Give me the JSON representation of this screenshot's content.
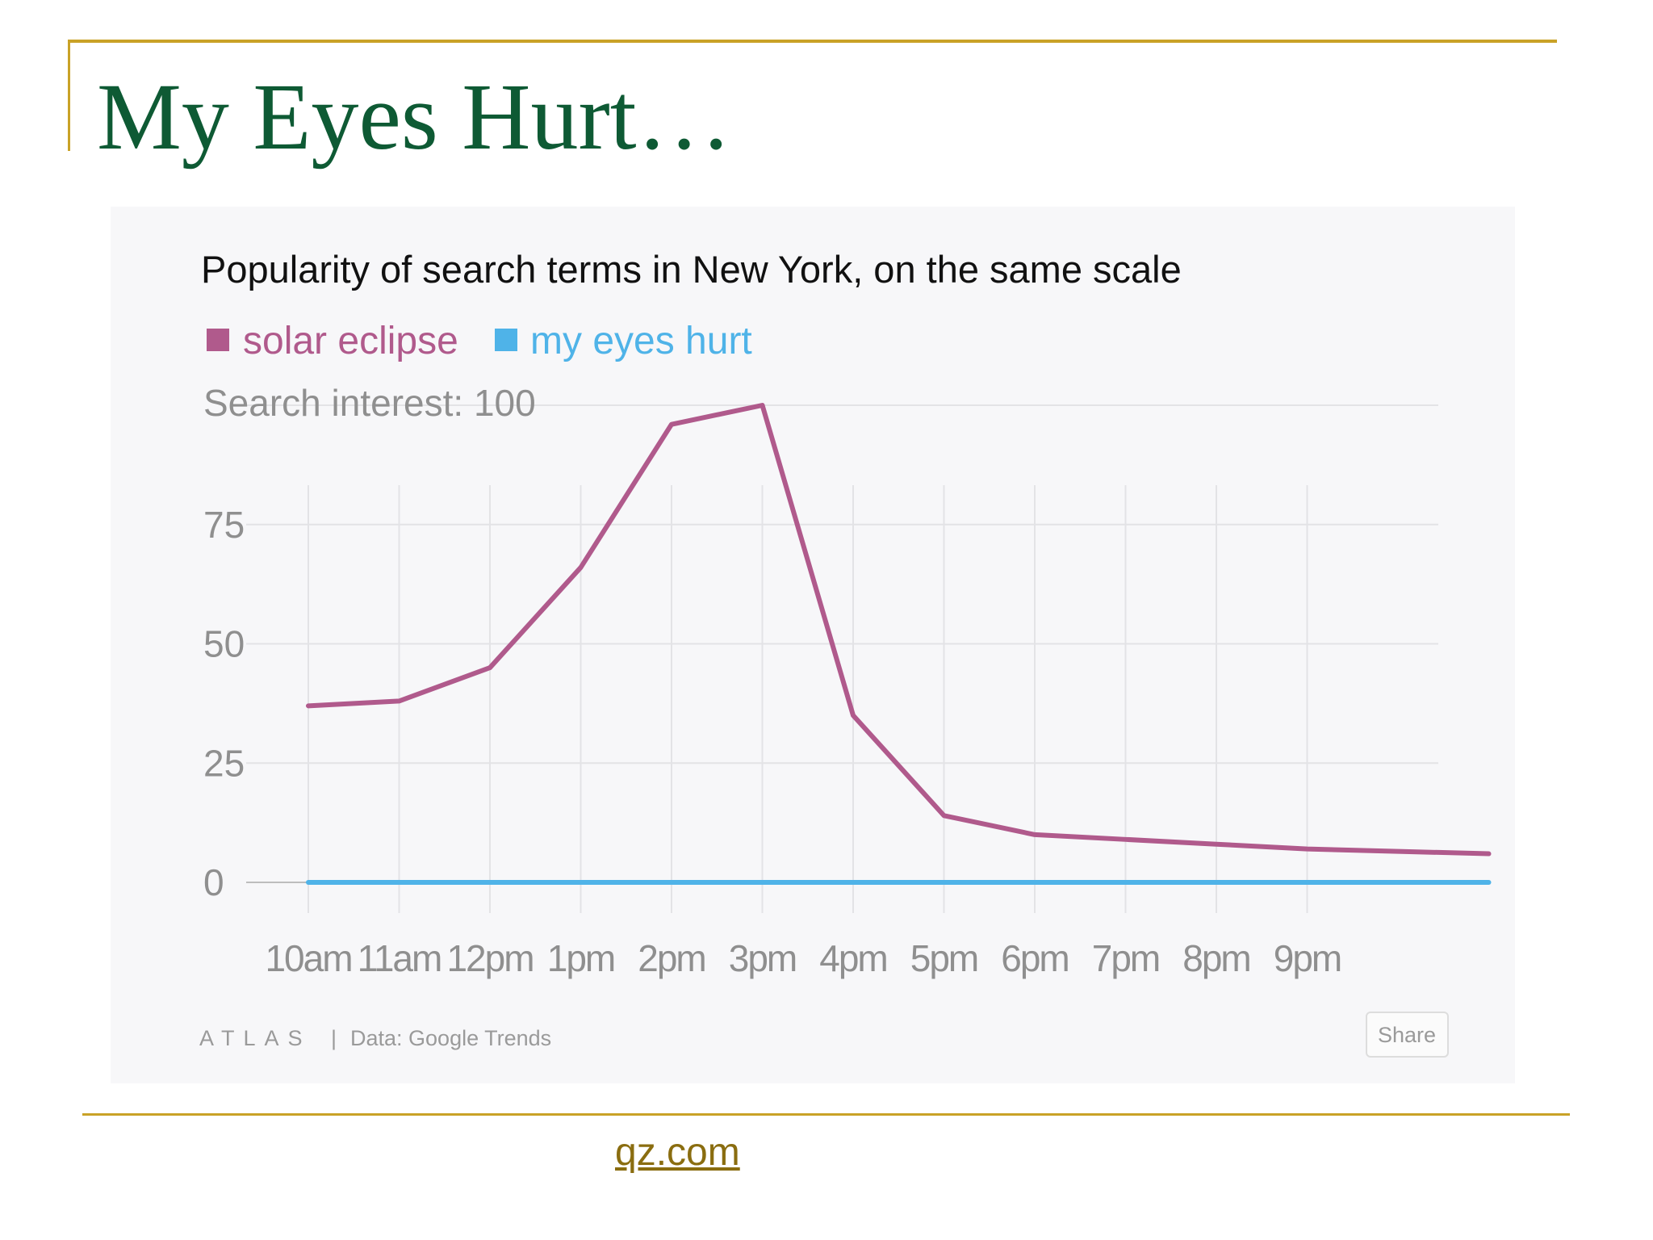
{
  "slide": {
    "title": "My Eyes Hurt…",
    "source_link": "qz.com"
  },
  "colors": {
    "accent_rule": "#c9a227",
    "title": "#0e5a34",
    "series_solar": "#b05a8c",
    "series_eyes": "#4fb3e8"
  },
  "chart_data": {
    "type": "line",
    "title": "Popularity of search terms in New York, on the same scale",
    "ylabel_top": "Search interest: 100",
    "ylim": [
      0,
      100
    ],
    "y_ticks": [
      0,
      25,
      50,
      75
    ],
    "y_tick_labels": [
      "0",
      "25",
      "50",
      "75"
    ],
    "categories": [
      "10am",
      "11am",
      "12pm",
      "1pm",
      "2pm",
      "3pm",
      "4pm",
      "5pm",
      "6pm",
      "7pm",
      "8pm",
      "9pm"
    ],
    "x": [
      10,
      11,
      12,
      13,
      14,
      15,
      16,
      17,
      18,
      19,
      20,
      21,
      22,
      23
    ],
    "grid": true,
    "legend_position": "top-left",
    "series": [
      {
        "name": "solar eclipse",
        "color": "#b05a8c",
        "values": [
          37,
          38,
          45,
          66,
          96,
          100,
          35,
          14,
          10,
          9,
          8,
          7,
          6.5,
          6
        ]
      },
      {
        "name": "my eyes hurt",
        "color": "#4fb3e8",
        "values": [
          0,
          0,
          0,
          0,
          0,
          0,
          0,
          0,
          0,
          0,
          0,
          0,
          0,
          0
        ]
      }
    ],
    "footer": {
      "brand": "ATLAS",
      "separator": "|",
      "data_source": "Data: Google Trends",
      "share_label": "Share"
    }
  }
}
